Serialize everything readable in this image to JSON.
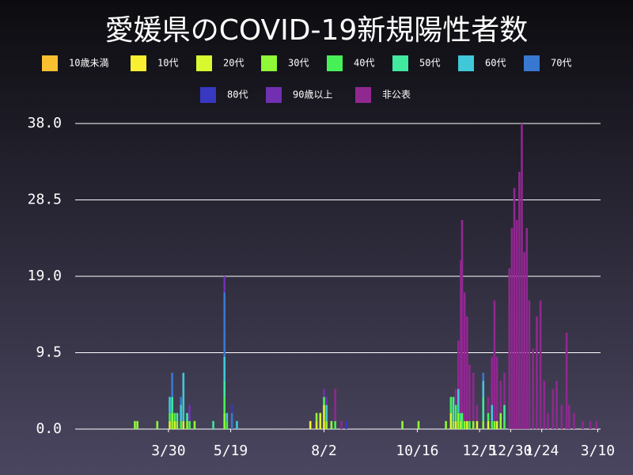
{
  "chart_data": {
    "type": "stacked_bar",
    "title": "愛媛県のCOVID-19新規陽性者数",
    "x": [
      62,
      64,
      80,
      90,
      92,
      94,
      96,
      99,
      101,
      104,
      106,
      110,
      125,
      134,
      136,
      140,
      144,
      203,
      208,
      211,
      214,
      216,
      220,
      223,
      228,
      232,
      277,
      290,
      312,
      316,
      318,
      320,
      322,
      324,
      325,
      327,
      329,
      331,
      334,
      337,
      342,
      346,
      349,
      351,
      353,
      356,
      359,
      363,
      365,
      367,
      369,
      371,
      373,
      375,
      377,
      379,
      382,
      385,
      388,
      391,
      394,
      398,
      401,
      405,
      409,
      411,
      415,
      422,
      428,
      433
    ],
    "xlim": [
      14,
      435
    ],
    "xticks": [
      {
        "value": 89,
        "label": "3/30"
      },
      {
        "value": 139,
        "label": "5/19"
      },
      {
        "value": 214,
        "label": "8/2"
      },
      {
        "value": 289,
        "label": "10/16"
      },
      {
        "value": 339,
        "label": "12/5"
      },
      {
        "value": 364,
        "label": "12/30"
      },
      {
        "value": 389,
        "label": "1/24"
      },
      {
        "value": 434,
        "label": "3/10"
      }
    ],
    "ylim": [
      0,
      38
    ],
    "yticks": [
      {
        "value": 0,
        "label": "0.0"
      },
      9.5,
      {
        "value": 19,
        "label": "19.0"
      },
      28.5,
      {
        "value": 38,
        "label": "38.0"
      }
    ],
    "grid": true,
    "series": [
      {
        "name": "10歳未満",
        "color": "#f8c030",
        "values": [
          0,
          0,
          0,
          0,
          0,
          0,
          0,
          0,
          0,
          0,
          0,
          0,
          0,
          0,
          0,
          0,
          0,
          0,
          0,
          0,
          0,
          0,
          0,
          0,
          0,
          0,
          0,
          0,
          0,
          0,
          0,
          0,
          0,
          0,
          0,
          0,
          0,
          0,
          0,
          0,
          0,
          0,
          0,
          0,
          0,
          0,
          0,
          0,
          0,
          0,
          0,
          0,
          0,
          0,
          0,
          0,
          0,
          0,
          0,
          0,
          0,
          0,
          0,
          0,
          0,
          0,
          0,
          0,
          0,
          0
        ]
      },
      {
        "name": "10代",
        "color": "#f8f030",
        "values": [
          0,
          0,
          0,
          0,
          0,
          0,
          0,
          0,
          0,
          0,
          0,
          0,
          0,
          0,
          0,
          0,
          0,
          1,
          0,
          0,
          1,
          0,
          0,
          0,
          0,
          0,
          0,
          0,
          0,
          0,
          0,
          0,
          0,
          0,
          0,
          0,
          0,
          0,
          0,
          0,
          0,
          0,
          0,
          0,
          0,
          0,
          0,
          0,
          0,
          0,
          0,
          0,
          0,
          0,
          0,
          0,
          0,
          0,
          0,
          0,
          0,
          0,
          0,
          0,
          0,
          0,
          0,
          0,
          0,
          0
        ]
      },
      {
        "name": "20代",
        "color": "#d8f830",
        "values": [
          0,
          0,
          0,
          1,
          0,
          1,
          0,
          0,
          1,
          0,
          0,
          0,
          0,
          0,
          0,
          0,
          0,
          0,
          1,
          2,
          2,
          0,
          0,
          0,
          0,
          0,
          0,
          0,
          0,
          2,
          0,
          1,
          0,
          1,
          0,
          0,
          1,
          0,
          0,
          1,
          0,
          1,
          0,
          0,
          1,
          0,
          0,
          0,
          0,
          0,
          0,
          0,
          0,
          0,
          0,
          0,
          0,
          0,
          0,
          0,
          0,
          0,
          0,
          0,
          0,
          0,
          0,
          0,
          0,
          0
        ]
      },
      {
        "name": "30代",
        "color": "#90f838",
        "values": [
          1,
          1,
          1,
          0,
          2,
          0,
          1,
          0,
          0,
          1,
          0,
          1,
          0,
          2,
          0,
          0,
          0,
          0,
          1,
          0,
          0,
          1,
          1,
          0,
          0,
          0,
          1,
          1,
          1,
          0,
          1,
          0,
          2,
          0,
          0,
          1,
          0,
          0,
          1,
          0,
          1,
          0,
          0,
          1,
          0,
          2,
          0,
          0,
          0,
          0,
          0,
          0,
          0,
          0,
          0,
          0,
          0,
          0,
          0,
          0,
          0,
          0,
          0,
          0,
          0,
          0,
          0,
          0,
          0,
          0
        ]
      },
      {
        "name": "40代",
        "color": "#48f058",
        "values": [
          0,
          0,
          0,
          1,
          0,
          1,
          0,
          1,
          0,
          0,
          1,
          0,
          0,
          2,
          1,
          0,
          0,
          0,
          0,
          0,
          1,
          0,
          0,
          1,
          0,
          0,
          0,
          0,
          0,
          2,
          0,
          2,
          0,
          0,
          2,
          0,
          0,
          1,
          0,
          0,
          0,
          1,
          1,
          0,
          0,
          0,
          1,
          0,
          0,
          0,
          0,
          0,
          0,
          0,
          0,
          0,
          0,
          0,
          0,
          0,
          0,
          0,
          0,
          0,
          0,
          0,
          0,
          0,
          0,
          0
        ]
      },
      {
        "name": "50代",
        "color": "#40e8a0",
        "values": [
          0,
          0,
          0,
          0,
          2,
          0,
          1,
          0,
          0,
          1,
          0,
          0,
          1,
          2,
          0,
          0,
          0,
          0,
          0,
          0,
          0,
          0,
          0,
          0,
          0,
          0,
          0,
          0,
          0,
          0,
          3,
          0,
          0,
          1,
          0,
          0,
          0,
          0,
          0,
          0,
          3,
          0,
          0,
          0,
          0,
          0,
          2,
          0,
          0,
          0,
          0,
          0,
          0,
          0,
          0,
          0,
          0,
          0,
          0,
          0,
          0,
          0,
          0,
          0,
          0,
          0,
          0,
          0,
          0,
          0
        ]
      },
      {
        "name": "60代",
        "color": "#40c8d8",
        "values": [
          0,
          0,
          0,
          2,
          0,
          0,
          0,
          2,
          6,
          0,
          0,
          0,
          0,
          3,
          1,
          0,
          1,
          0,
          0,
          0,
          0,
          2,
          0,
          0,
          0,
          0,
          0,
          0,
          0,
          0,
          0,
          0,
          3,
          0,
          0,
          0,
          0,
          0,
          0,
          0,
          2,
          0,
          2,
          0,
          0,
          0,
          0,
          0,
          0,
          0,
          0,
          0,
          0,
          0,
          0,
          0,
          0,
          0,
          0,
          0,
          0,
          0,
          0,
          0,
          0,
          0,
          0,
          0,
          0,
          0
        ]
      },
      {
        "name": "70代",
        "color": "#3878d0",
        "values": [
          0,
          0,
          0,
          0,
          3,
          0,
          0,
          1,
          0,
          0,
          0,
          0,
          0,
          8,
          0,
          2,
          0,
          0,
          0,
          0,
          0,
          0,
          0,
          0,
          0,
          0,
          0,
          0,
          0,
          0,
          0,
          0,
          0,
          0,
          0,
          0,
          0,
          0,
          0,
          0,
          1,
          0,
          0,
          0,
          0,
          0,
          0,
          0,
          0,
          0,
          0,
          0,
          0,
          0,
          0,
          0,
          0,
          0,
          0,
          0,
          0,
          0,
          0,
          0,
          0,
          0,
          0,
          0,
          0,
          0
        ]
      },
      {
        "name": "80代",
        "color": "#3838c0",
        "values": [
          0,
          0,
          0,
          0,
          0,
          0,
          0,
          0,
          0,
          0,
          0,
          0,
          0,
          0,
          0,
          1,
          0,
          0,
          0,
          0,
          0,
          0,
          0,
          0,
          0,
          1,
          0,
          0,
          0,
          0,
          0,
          0,
          0,
          0,
          0,
          0,
          0,
          0,
          0,
          0,
          0,
          0,
          0,
          0,
          0,
          0,
          0,
          0,
          0,
          0,
          0,
          0,
          0,
          0,
          0,
          0,
          0,
          0,
          0,
          0,
          0,
          0,
          0,
          0,
          0,
          0,
          0,
          0,
          0,
          0
        ]
      },
      {
        "name": "90歳以上",
        "color": "#7030b0",
        "values": [
          0,
          0,
          0,
          0,
          0,
          0,
          0,
          0,
          0,
          0,
          2,
          0,
          0,
          2,
          0,
          0,
          0,
          0,
          0,
          0,
          1,
          1,
          0,
          0,
          0,
          0,
          0,
          0,
          0,
          0,
          0,
          0,
          0,
          0,
          0,
          0,
          0,
          0,
          0,
          0,
          0,
          0,
          0,
          0,
          0,
          0,
          0,
          0,
          0,
          0,
          0,
          0,
          0,
          0,
          0,
          0,
          0,
          0,
          0,
          0,
          0,
          0,
          0,
          0,
          0,
          0,
          0,
          0,
          0,
          0
        ]
      },
      {
        "name": "非公表",
        "color": "#902890",
        "values": [
          0,
          0,
          0,
          0,
          0,
          0,
          0,
          0,
          0,
          0,
          0,
          0,
          0,
          0,
          0,
          0,
          0,
          0,
          0,
          0,
          0,
          0,
          0,
          4,
          1,
          0,
          0,
          0,
          0,
          0,
          0,
          2,
          6,
          19,
          24,
          16,
          13,
          7,
          6,
          2,
          0,
          2,
          6,
          15,
          8,
          4,
          4,
          20,
          25,
          30,
          26,
          32,
          38,
          22,
          25,
          16,
          10,
          14,
          16,
          6,
          2,
          5,
          6,
          3,
          12,
          3,
          2,
          1,
          1,
          1
        ]
      }
    ]
  }
}
